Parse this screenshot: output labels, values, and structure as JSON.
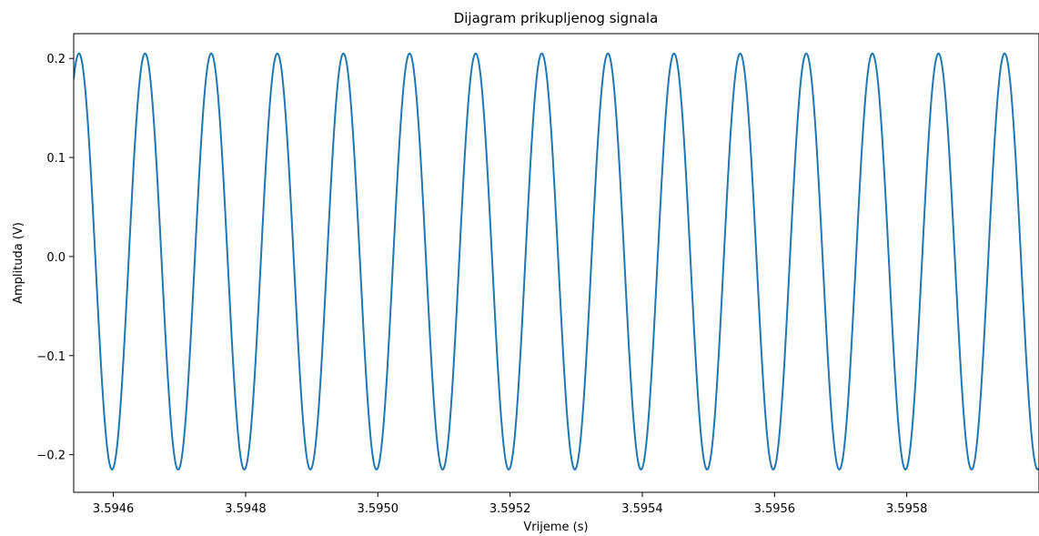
{
  "chart_data": {
    "type": "line",
    "title": "Dijagram prikupljenog signala",
    "xlabel": "Vrijeme (s)",
    "ylabel": "Amplituda (V)",
    "xlim": [
      3.59454,
      3.596
    ],
    "ylim": [
      -0.238,
      0.225
    ],
    "x_ticks": [
      3.5946,
      3.5948,
      3.595,
      3.5952,
      3.5954,
      3.5956,
      3.5958
    ],
    "x_tick_labels": [
      "3.5946",
      "3.5948",
      "3.5950",
      "3.5952",
      "3.5954",
      "3.5956",
      "3.5958"
    ],
    "y_ticks": [
      0.2,
      0.1,
      0.0,
      -0.1,
      -0.2
    ],
    "y_tick_labels": [
      "0.2",
      "0.1",
      "0.0",
      "−0.1",
      "−0.2"
    ],
    "grid": false,
    "series": [
      {
        "color": "#1f77b4",
        "waveform": "sine",
        "offset": -0.005,
        "amplitude": 0.21,
        "peak_times": [
          3.594548,
          3.594648,
          3.594748,
          3.594848,
          3.594948,
          3.595048,
          3.595148,
          3.595248,
          3.595348,
          3.595448,
          3.595548,
          3.595648,
          3.595748,
          3.595848,
          3.595948
        ],
        "x_range": [
          3.59454,
          3.596
        ]
      }
    ]
  }
}
